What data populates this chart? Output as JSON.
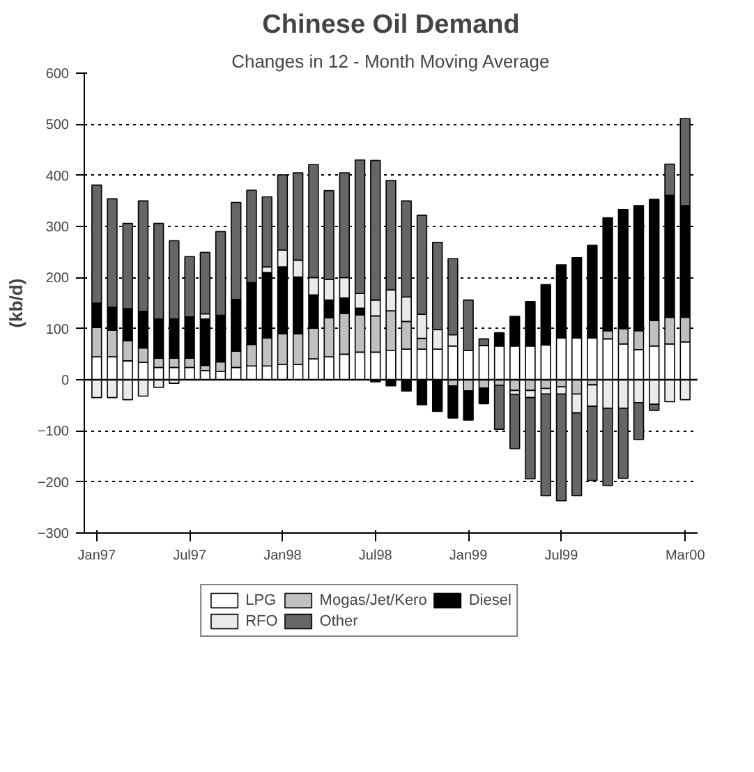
{
  "chart_data": {
    "type": "bar",
    "stacked": true,
    "title": "Chinese Oil Demand",
    "subtitle": "Changes in 12 - Month Moving Average",
    "ylabel": "(kb/d)",
    "categories": [
      "Jan97",
      null,
      null,
      null,
      null,
      null,
      "Jul97",
      null,
      null,
      null,
      null,
      null,
      "Jan98",
      null,
      null,
      null,
      null,
      null,
      "Jul98",
      null,
      null,
      null,
      null,
      null,
      "Jan99",
      null,
      null,
      null,
      null,
      null,
      "Jul99",
      null,
      null,
      null,
      null,
      null,
      null,
      null,
      "Mar00"
    ],
    "series": [
      {
        "name": "LPG",
        "color": "#ffffff",
        "values": [
          45,
          45,
          37,
          34,
          24,
          24,
          24,
          18,
          16,
          24,
          27,
          27,
          30,
          30,
          41,
          45,
          50,
          54,
          54,
          57,
          60,
          60,
          60,
          66,
          57,
          67,
          66,
          66,
          66,
          68,
          82,
          82,
          82,
          80,
          70,
          59,
          66,
          70,
          74
        ]
      },
      {
        "name": "Mogas/Jet/Kero",
        "color": "#c0c0c0",
        "values": [
          57,
          52,
          39,
          28,
          18,
          18,
          18,
          10,
          19,
          32,
          42,
          55,
          60,
          60,
          60,
          76,
          80,
          73,
          71,
          78,
          54,
          21,
          0,
          -12,
          -22,
          -16,
          -11,
          -21,
          -21,
          -17,
          -14,
          -28,
          -10,
          16,
          30,
          37,
          50,
          52,
          48
        ]
      },
      {
        "name": "Diesel",
        "color": "#000000",
        "values": [
          48,
          45,
          63,
          72,
          77,
          77,
          81,
          91,
          91,
          101,
          121,
          128,
          131,
          111,
          65,
          35,
          30,
          13,
          -4,
          -12,
          -22,
          -49,
          -62,
          -63,
          -57,
          -31,
          26,
          58,
          87,
          118,
          143,
          157,
          181,
          221,
          233,
          245,
          237,
          239,
          219
        ]
      },
      {
        "name": "RFO",
        "color": "#eaeaea",
        "values": [
          -35,
          -35,
          -39,
          -32,
          -15,
          -7,
          0,
          10,
          0,
          0,
          0,
          11,
          33,
          33,
          34,
          40,
          40,
          29,
          31,
          41,
          48,
          47,
          38,
          22,
          0,
          0,
          0,
          -8,
          -14,
          -11,
          -14,
          -37,
          -42,
          -56,
          -56,
          -45,
          -48,
          -43,
          -39
        ]
      },
      {
        "name": "Other",
        "color": "#666666",
        "values": [
          231,
          212,
          167,
          216,
          187,
          153,
          118,
          120,
          164,
          190,
          181,
          137,
          147,
          171,
          221,
          174,
          205,
          261,
          273,
          214,
          188,
          194,
          171,
          149,
          99,
          13,
          -86,
          -106,
          -159,
          -199,
          -209,
          -162,
          -145,
          -151,
          -137,
          -72,
          -12,
          61,
          170
        ]
      }
    ],
    "ylim": [
      -300,
      600
    ],
    "yticks": [
      -300,
      -200,
      -100,
      0,
      100,
      200,
      300,
      400,
      500,
      600
    ],
    "grid": "y",
    "legend": "bottom",
    "ref_lines": [
      {
        "axis": "y",
        "value": 0
      }
    ]
  }
}
